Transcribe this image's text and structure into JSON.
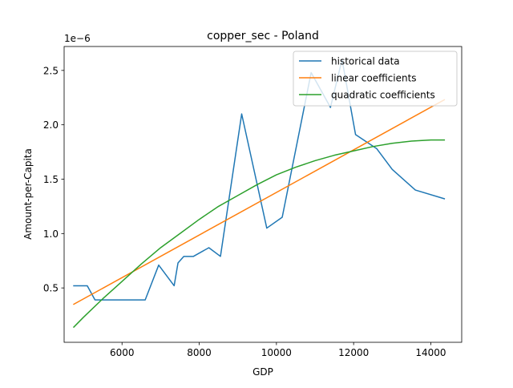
{
  "chart_data": {
    "type": "line",
    "title": "copper_sec - Poland",
    "xlabel": "GDP",
    "ylabel": "Amount-per-Capita",
    "y_scale_label": "1e−6",
    "xlim": [
      4500,
      14800
    ],
    "ylim": [
      0.0,
      2.72
    ],
    "xticks": [
      6000,
      8000,
      10000,
      12000,
      14000
    ],
    "yticks": [
      0.5,
      1.0,
      1.5,
      2.0,
      2.5
    ],
    "xtick_labels": [
      "6000",
      "8000",
      "10000",
      "12000",
      "14000"
    ],
    "ytick_labels": [
      "0.5",
      "1.0",
      "1.5",
      "2.0",
      "2.5"
    ],
    "grid": false,
    "legend_position": "top-right",
    "series": [
      {
        "name": "historical data",
        "color": "#1f77b4",
        "points": [
          [
            4750,
            0.52
          ],
          [
            4800,
            0.52
          ],
          [
            5000,
            0.52
          ],
          [
            5100,
            0.52
          ],
          [
            5300,
            0.39
          ],
          [
            5600,
            0.39
          ],
          [
            6000,
            0.39
          ],
          [
            6600,
            0.39
          ],
          [
            6950,
            0.71
          ],
          [
            7350,
            0.52
          ],
          [
            7450,
            0.73
          ],
          [
            7600,
            0.79
          ],
          [
            7850,
            0.79
          ],
          [
            8250,
            0.87
          ],
          [
            8550,
            0.79
          ],
          [
            9100,
            2.1
          ],
          [
            9750,
            1.05
          ],
          [
            10150,
            1.15
          ],
          [
            10900,
            2.48
          ],
          [
            11400,
            2.16
          ],
          [
            11700,
            2.6
          ],
          [
            12050,
            1.91
          ],
          [
            12600,
            1.78
          ],
          [
            13000,
            1.59
          ],
          [
            13600,
            1.4
          ],
          [
            14350,
            1.32
          ]
        ]
      },
      {
        "name": "linear coefficients",
        "color": "#ff7f0e",
        "points": [
          [
            4750,
            0.35
          ],
          [
            14350,
            2.23
          ]
        ]
      },
      {
        "name": "quadratic coefficients",
        "color": "#2ca02c",
        "points": [
          [
            4750,
            0.14
          ],
          [
            5000,
            0.23
          ],
          [
            5500,
            0.4
          ],
          [
            6000,
            0.56
          ],
          [
            6500,
            0.72
          ],
          [
            7000,
            0.87
          ],
          [
            7500,
            1.0
          ],
          [
            8000,
            1.13
          ],
          [
            8500,
            1.25
          ],
          [
            9000,
            1.35
          ],
          [
            9500,
            1.45
          ],
          [
            10000,
            1.54
          ],
          [
            10500,
            1.61
          ],
          [
            11000,
            1.67
          ],
          [
            11500,
            1.72
          ],
          [
            12000,
            1.76
          ],
          [
            12500,
            1.8
          ],
          [
            13000,
            1.83
          ],
          [
            13500,
            1.85
          ],
          [
            14000,
            1.86
          ],
          [
            14350,
            1.86
          ]
        ]
      }
    ]
  }
}
